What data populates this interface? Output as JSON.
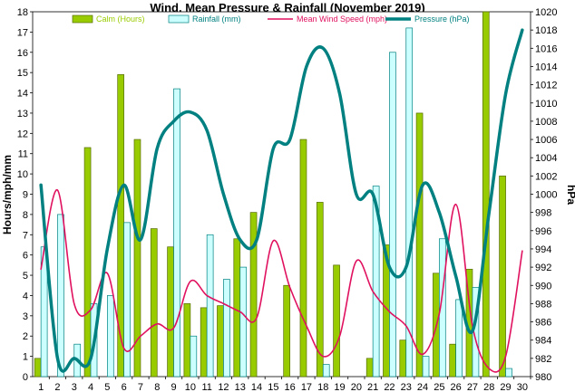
{
  "chart_data": {
    "type": "bar",
    "title": "Wind, Mean Pressure & Rainfall (November 2019)",
    "ylabel": "Hours/mph/mm",
    "y2label": "hPa",
    "ylim": [
      0,
      18
    ],
    "y2lim": [
      980,
      1020
    ],
    "yticks": [
      "0",
      "1",
      "2",
      "3",
      "4",
      "5",
      "6",
      "7",
      "8",
      "9",
      "10",
      "11",
      "12",
      "13",
      "14",
      "15",
      "16",
      "17",
      "18"
    ],
    "y2ticks": [
      "980",
      "982",
      "984",
      "986",
      "988",
      "990",
      "992",
      "994",
      "996",
      "998",
      "1000",
      "1002",
      "1004",
      "1006",
      "1008",
      "1010",
      "1012",
      "1014",
      "1016",
      "1018",
      "1020"
    ],
    "categories": [
      "1",
      "2",
      "3",
      "4",
      "5",
      "6",
      "7",
      "8",
      "9",
      "10",
      "11",
      "12",
      "13",
      "14",
      "15",
      "16",
      "17",
      "18",
      "19",
      "20",
      "21",
      "22",
      "23",
      "24",
      "25",
      "26",
      "27",
      "28",
      "29",
      "30"
    ],
    "series": [
      {
        "name": "Calm (Hours)",
        "kind": "bar",
        "axis": "left",
        "color": "#99cc00",
        "values": [
          0.9,
          0,
          0,
          11.3,
          0,
          14.9,
          11.7,
          7.3,
          6.4,
          3.6,
          3.4,
          3.5,
          6.8,
          8.1,
          0,
          4.5,
          11.7,
          8.6,
          5.5,
          0,
          0.9,
          6.5,
          1.8,
          13.0,
          5.1,
          1.6,
          5.3,
          18.0,
          9.9,
          0
        ]
      },
      {
        "name": "Rainfall (mm)",
        "kind": "bar",
        "axis": "left",
        "color": "#ccffff",
        "values": [
          6.4,
          8.0,
          1.6,
          3.6,
          4.0,
          7.6,
          0,
          0,
          14.2,
          2.0,
          7.0,
          4.8,
          5.4,
          0,
          0,
          0,
          0,
          0.6,
          0,
          0,
          9.4,
          16.0,
          17.2,
          1.0,
          6.8,
          3.8,
          4.4,
          0,
          0.4,
          0
        ]
      },
      {
        "name": "Mean Wind Speed (mph)",
        "kind": "line",
        "axis": "left",
        "color": "#e0115f",
        "values": [
          5.3,
          9.2,
          3.6,
          3.3,
          5.1,
          1.4,
          2.0,
          2.6,
          2.4,
          4.7,
          4.0,
          3.6,
          3.2,
          2.9,
          6.7,
          4.4,
          2.5,
          1.0,
          2.0,
          5.7,
          4.2,
          3.2,
          2.5,
          1.1,
          3.1,
          8.5,
          2.5,
          0.4,
          1.0,
          6.2
        ]
      },
      {
        "name": "Pressure (hPa)",
        "kind": "line",
        "axis": "right",
        "color": "#008080",
        "values": [
          1001,
          982,
          982,
          982,
          994,
          1001,
          995,
          1005,
          1008,
          1009,
          1007,
          1000,
          995,
          995,
          1005,
          1006,
          1014,
          1016,
          1011,
          1000,
          1000,
          992,
          992,
          1001,
          998,
          991,
          985,
          998,
          1011,
          1018
        ]
      }
    ],
    "legend_position": "top"
  }
}
